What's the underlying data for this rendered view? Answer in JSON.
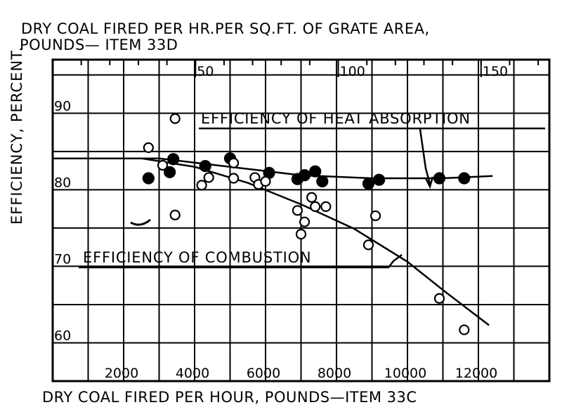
{
  "chart_data": {
    "type": "scatter",
    "title_lines": [
      "DRY COAL FIRED PER HR.PER SQ.FT. OF GRATE AREA,",
      "POUNDS— ITEM 33D"
    ],
    "xlabel": "DRY COAL FIRED PER HOUR,   POUNDS—ITEM 33C",
    "ylabel": "EFFICIENCY, PERCENT.",
    "x_ticks": [
      2000,
      4000,
      6000,
      8000,
      10000,
      12000
    ],
    "x_tick_labels": [
      "2000",
      "4000",
      "6000",
      "8000",
      "10000",
      "12000"
    ],
    "top_ticks": [
      50,
      100,
      150
    ],
    "top_tick_labels": [
      "50",
      "100",
      "150"
    ],
    "y_ticks": [
      60,
      70,
      80,
      90
    ],
    "y_tick_labels": [
      "60",
      "70",
      "80",
      "90"
    ],
    "xlim": [
      0,
      14000
    ],
    "ylim": [
      55,
      97
    ],
    "top_x_per_unit": 80.5,
    "grid": true,
    "series": [
      {
        "name": "EFFICIENCY OF HEAT ABSORPTION",
        "marker": "filled-circle",
        "points": [
          [
            2700,
            81.5
          ],
          [
            3300,
            82.3
          ],
          [
            3400,
            84.0
          ],
          [
            4300,
            83.1
          ],
          [
            5000,
            84.1
          ],
          [
            6100,
            82.2
          ],
          [
            6900,
            81.4
          ],
          [
            7100,
            81.9
          ],
          [
            7400,
            82.4
          ],
          [
            7600,
            81.1
          ],
          [
            8900,
            80.8
          ],
          [
            9200,
            81.3
          ],
          [
            10900,
            81.5
          ],
          [
            11600,
            81.5
          ]
        ]
      },
      {
        "name": "EFFICIENCY OF COMBUSTION",
        "marker": "open-circle",
        "points": [
          [
            2700,
            85.5
          ],
          [
            3100,
            83.2
          ],
          [
            3450,
            89.3
          ],
          [
            3450,
            76.7
          ],
          [
            4200,
            80.6
          ],
          [
            4400,
            81.6
          ],
          [
            5100,
            81.5
          ],
          [
            5100,
            83.5
          ],
          [
            5700,
            81.6
          ],
          [
            5800,
            80.7
          ],
          [
            6000,
            81.1
          ],
          [
            6900,
            77.3
          ],
          [
            7000,
            74.2
          ],
          [
            7100,
            75.8
          ],
          [
            7300,
            79.0
          ],
          [
            7400,
            77.8
          ],
          [
            7700,
            77.8
          ],
          [
            8900,
            72.8
          ],
          [
            9100,
            76.6
          ],
          [
            10900,
            65.8
          ],
          [
            11600,
            61.7
          ]
        ]
      }
    ],
    "fit_lines": [
      {
        "series": "EFFICIENCY OF HEAT ABSORPTION",
        "points": [
          [
            0,
            84.1
          ],
          [
            3000,
            84.1
          ],
          [
            5000,
            83.0
          ],
          [
            7000,
            81.9
          ],
          [
            9000,
            81.5
          ],
          [
            11000,
            81.5
          ],
          [
            12400,
            81.8
          ]
        ]
      },
      {
        "series": "EFFICIENCY OF COMBUSTION",
        "points": [
          [
            2500,
            84.1
          ],
          [
            4000,
            83.0
          ],
          [
            5500,
            80.9
          ],
          [
            7000,
            78.1
          ],
          [
            8500,
            74.9
          ],
          [
            10000,
            70.6
          ],
          [
            11000,
            66.9
          ],
          [
            12300,
            62.3
          ]
        ]
      }
    ],
    "annotations": [
      {
        "text": "EFFICIENCY OF HEAT ABSORPTION",
        "series": "EFFICIENCY OF HEAT ABSORPTION"
      },
      {
        "text": "EFFICIENCY OF COMBUSTION",
        "series": "EFFICIENCY OF COMBUSTION"
      }
    ]
  }
}
